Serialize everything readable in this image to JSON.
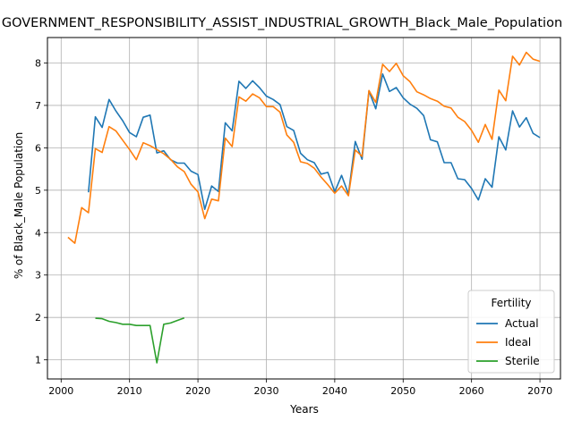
{
  "chart_data": {
    "type": "line",
    "title": "GOVERNMENT_RESPONSIBILITY_ASSIST_INDUSTRIAL_GROWTH_Black_Male_Population",
    "xlabel": "Years",
    "ylabel": "% of Black_Male Population",
    "xlim": [
      1998,
      2073
    ],
    "ylim": [
      0.55,
      8.6
    ],
    "xticks": [
      2000,
      2010,
      2020,
      2030,
      2040,
      2050,
      2060,
      2070
    ],
    "yticks": [
      1,
      2,
      3,
      4,
      5,
      6,
      7,
      8
    ],
    "grid": true,
    "legend": {
      "title": "Fertility",
      "placement": "lower right"
    },
    "series": [
      {
        "name": "Actual",
        "color": "#1f77b4",
        "x": [
          2004,
          2005,
          2006,
          2007,
          2008,
          2009,
          2010,
          2011,
          2012,
          2013,
          2014,
          2015,
          2016,
          2017,
          2018,
          2019,
          2020,
          2021,
          2022,
          2023,
          2024,
          2025,
          2026,
          2027,
          2028,
          2029,
          2030,
          2031,
          2032,
          2033,
          2034,
          2035,
          2036,
          2037,
          2038,
          2039,
          2040,
          2041,
          2042,
          2043,
          2044,
          2045,
          2046,
          2047,
          2048,
          2049,
          2050,
          2051,
          2052,
          2053,
          2054,
          2055,
          2056,
          2057,
          2058,
          2059,
          2060,
          2061,
          2062,
          2063,
          2064,
          2065,
          2066,
          2067,
          2068,
          2069,
          2070
        ],
        "y": [
          4.95,
          6.73,
          6.48,
          7.14,
          6.87,
          6.64,
          6.36,
          6.26,
          6.72,
          6.77,
          5.88,
          5.93,
          5.72,
          5.64,
          5.64,
          5.45,
          5.37,
          4.55,
          5.1,
          4.97,
          6.59,
          6.4,
          7.57,
          7.4,
          7.58,
          7.42,
          7.22,
          7.14,
          7.02,
          6.5,
          6.41,
          5.87,
          5.72,
          5.65,
          5.38,
          5.42,
          4.96,
          5.35,
          4.91,
          6.15,
          5.73,
          7.34,
          6.92,
          7.74,
          7.33,
          7.42,
          7.18,
          7.03,
          6.93,
          6.76,
          6.19,
          6.14,
          5.65,
          5.65,
          5.27,
          5.25,
          5.04,
          4.77,
          5.27,
          5.07,
          6.26,
          5.95,
          6.87,
          6.49,
          6.71,
          6.34,
          6.24
        ]
      },
      {
        "name": "Ideal",
        "color": "#ff7f0e",
        "x": [
          2001,
          2002,
          2003,
          2004,
          2005,
          2006,
          2007,
          2008,
          2009,
          2010,
          2011,
          2012,
          2013,
          2014,
          2015,
          2016,
          2017,
          2018,
          2019,
          2020,
          2021,
          2022,
          2023,
          2024,
          2025,
          2026,
          2027,
          2028,
          2029,
          2030,
          2031,
          2032,
          2033,
          2034,
          2035,
          2036,
          2037,
          2038,
          2039,
          2040,
          2041,
          2042,
          2043,
          2044,
          2045,
          2046,
          2047,
          2048,
          2049,
          2050,
          2051,
          2052,
          2053,
          2054,
          2055,
          2056,
          2057,
          2058,
          2059,
          2060,
          2061,
          2062,
          2063,
          2064,
          2065,
          2066,
          2067,
          2068,
          2069,
          2070
        ],
        "y": [
          3.89,
          3.75,
          4.59,
          4.47,
          5.98,
          5.89,
          6.5,
          6.4,
          6.18,
          5.96,
          5.72,
          6.12,
          6.05,
          5.96,
          5.86,
          5.73,
          5.55,
          5.44,
          5.14,
          4.96,
          4.33,
          4.79,
          4.75,
          6.23,
          6.03,
          7.2,
          7.1,
          7.27,
          7.18,
          6.97,
          6.97,
          6.84,
          6.3,
          6.13,
          5.67,
          5.63,
          5.52,
          5.31,
          5.13,
          4.93,
          5.1,
          4.87,
          5.95,
          5.8,
          7.35,
          7.07,
          7.97,
          7.8,
          7.99,
          7.7,
          7.56,
          7.32,
          7.25,
          7.16,
          7.1,
          6.98,
          6.94,
          6.72,
          6.62,
          6.41,
          6.13,
          6.55,
          6.2,
          7.36,
          7.11,
          8.16,
          7.95,
          8.25,
          8.09,
          8.04
        ]
      },
      {
        "name": "Sterile",
        "color": "#2ca02c",
        "x": [
          2005,
          2006,
          2007,
          2008,
          2009,
          2010,
          2011,
          2012,
          2013,
          2014,
          2015,
          2016,
          2017,
          2018
        ],
        "y": [
          1.98,
          1.97,
          1.91,
          1.88,
          1.84,
          1.84,
          1.81,
          1.81,
          1.81,
          0.93,
          1.84,
          1.87,
          1.93,
          1.99
        ]
      }
    ]
  }
}
